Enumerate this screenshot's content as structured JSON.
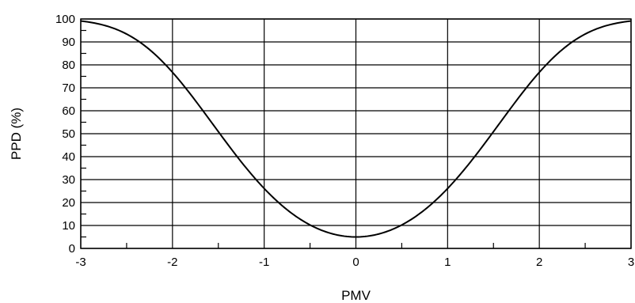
{
  "chart_data": {
    "type": "line",
    "title": "",
    "xlabel": "PMV",
    "ylabel": "PPD (%)",
    "xlim": [
      -3,
      3
    ],
    "ylim": [
      0,
      100
    ],
    "x_ticks": [
      -3,
      -2,
      -1,
      0,
      1,
      2,
      3
    ],
    "y_ticks": [
      0,
      10,
      20,
      30,
      40,
      50,
      60,
      70,
      80,
      90,
      100
    ],
    "x_tick_labels": [
      "-3",
      "-2",
      "-1",
      "0",
      "1",
      "2",
      "3"
    ],
    "y_tick_labels": [
      "0",
      "10",
      "20",
      "30",
      "40",
      "50",
      "60",
      "70",
      "80",
      "90",
      "100"
    ],
    "grid": true,
    "line_color": "#000000",
    "series": [
      {
        "x": [
          -3.0,
          -2.75,
          -2.5,
          -2.25,
          -2.0,
          -1.75,
          -1.5,
          -1.25,
          -1.0,
          -0.75,
          -0.5,
          -0.25,
          0.0,
          0.25,
          0.5,
          0.75,
          1.0,
          1.25,
          1.5,
          1.75,
          2.0,
          2.25,
          2.5,
          2.75,
          3.0
        ],
        "values": [
          99.1,
          96.1,
          89.0,
          78.6,
          76.8,
          63.8,
          50.4,
          37.0,
          26.1,
          16.7,
          10.2,
          6.3,
          5.0,
          6.3,
          10.2,
          16.7,
          26.1,
          37.0,
          50.4,
          63.8,
          76.8,
          86.6,
          93.8,
          97.5,
          99.1
        ]
      }
    ]
  }
}
